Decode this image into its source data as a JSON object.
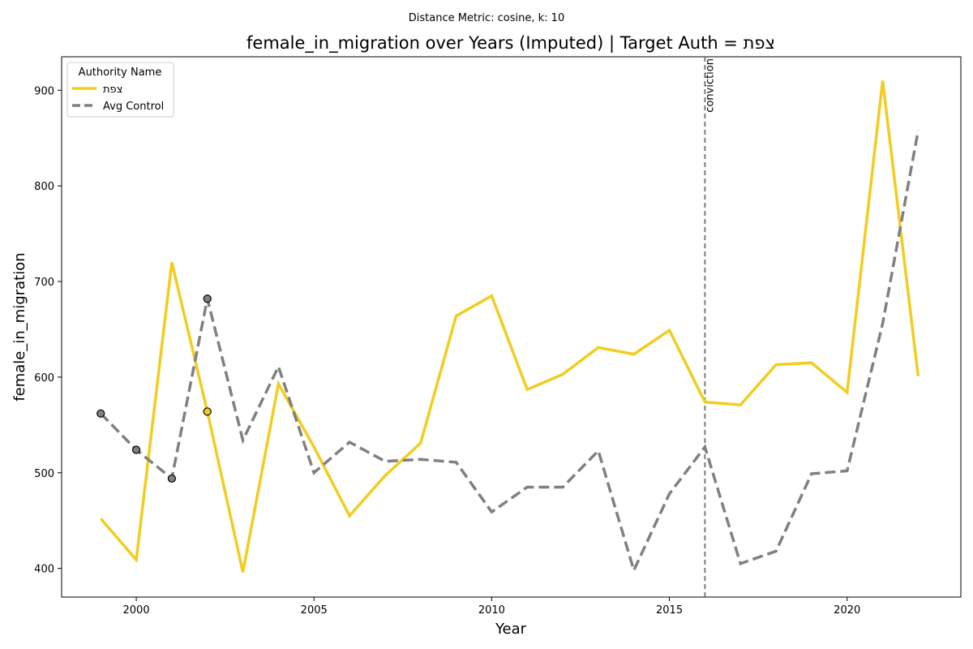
{
  "chart_data": {
    "type": "line",
    "suptitle": "Distance Metric: cosine, k: 10",
    "title": "female_in_migration over Years (Imputed) | Target Auth = צפת",
    "xlabel": "Year",
    "ylabel": "female_in_migration",
    "xlim": [
      1997.9,
      2023.2
    ],
    "ylim": [
      370,
      935
    ],
    "xticks": [
      2000,
      2005,
      2010,
      2015,
      2020
    ],
    "yticks": [
      400,
      500,
      600,
      700,
      800,
      900
    ],
    "x": [
      1999,
      2000,
      2001,
      2002,
      2003,
      2004,
      2005,
      2006,
      2007,
      2008,
      2009,
      2010,
      2011,
      2012,
      2013,
      2014,
      2015,
      2016,
      2017,
      2018,
      2019,
      2020,
      2021,
      2022
    ],
    "series": [
      {
        "name": "צפת",
        "color": "#f2cd1f",
        "style": "solid",
        "values": [
          452,
          409,
          720,
          564,
          396,
          593,
          527,
          455,
          497,
          531,
          664,
          685,
          587,
          603,
          631,
          624,
          649,
          574,
          571,
          613,
          615,
          584,
          910,
          601
        ],
        "imputed_x": [
          2002
        ]
      },
      {
        "name": "Avg Control",
        "color": "#808080",
        "style": "dashed",
        "values": [
          562,
          524,
          494,
          682,
          534,
          611,
          500,
          532,
          512,
          514,
          511,
          459,
          485,
          485,
          523,
          398,
          478,
          527,
          405,
          418,
          499,
          502,
          656,
          858
        ],
        "imputed_x": [
          1999,
          2000,
          2001,
          2002
        ]
      }
    ],
    "legend": {
      "title": "Authority Name",
      "placement": "top-left"
    },
    "annotations": [
      {
        "x": 2016,
        "label": "conviction",
        "style": "dashed-vertical"
      }
    ],
    "grid": false
  }
}
